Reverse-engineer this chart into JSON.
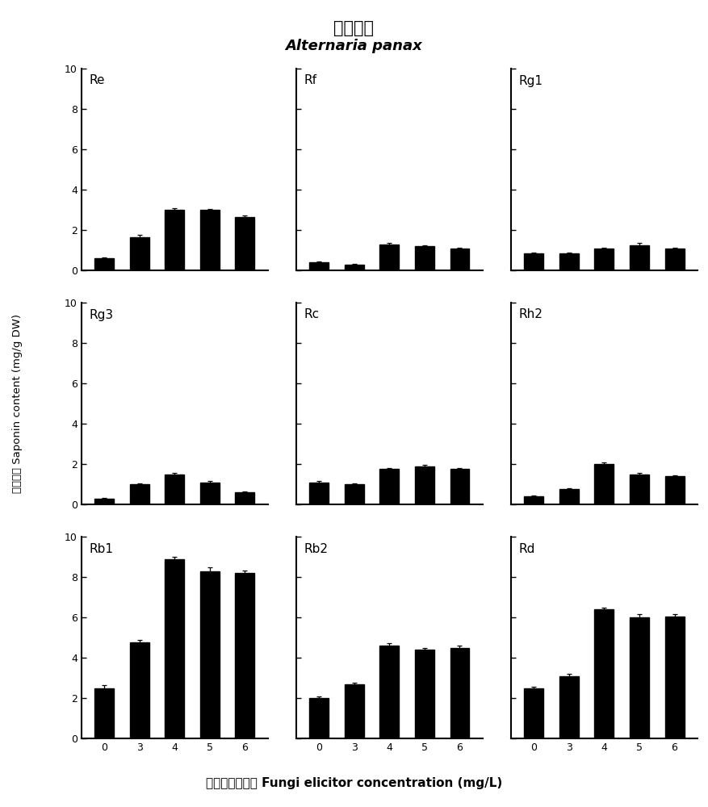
{
  "title_cn": "黑斑病菌",
  "title_latin": "Alternaria panax",
  "xlabel_cn": "真菌诱导子浓度",
  "xlabel_en": "Fungi elicitor concentration (mg/L)",
  "ylabel_cn": "皂苷含量",
  "ylabel_en": "Saponin content (mg/g DW)",
  "x_ticks": [
    0,
    3,
    4,
    5,
    6
  ],
  "subplots": [
    {
      "label": "Re",
      "values": [
        0.6,
        1.65,
        3.0,
        3.0,
        2.65
      ],
      "errors": [
        0.05,
        0.12,
        0.1,
        0.05,
        0.08
      ],
      "ylim": [
        0,
        10
      ]
    },
    {
      "label": "Rf",
      "values": [
        0.4,
        0.3,
        1.3,
        1.2,
        1.1
      ],
      "errors": [
        0.04,
        0.03,
        0.05,
        0.04,
        0.04
      ],
      "ylim": [
        0,
        10
      ]
    },
    {
      "label": "Rg1",
      "values": [
        0.85,
        0.85,
        1.1,
        1.25,
        1.1
      ],
      "errors": [
        0.04,
        0.04,
        0.04,
        0.1,
        0.04
      ],
      "ylim": [
        0,
        10
      ]
    },
    {
      "label": "Rg3",
      "values": [
        0.3,
        1.0,
        1.5,
        1.1,
        0.6
      ],
      "errors": [
        0.03,
        0.05,
        0.06,
        0.05,
        0.04
      ],
      "ylim": [
        0,
        10
      ]
    },
    {
      "label": "Rc",
      "values": [
        1.1,
        1.0,
        1.75,
        1.9,
        1.75
      ],
      "errors": [
        0.05,
        0.05,
        0.06,
        0.05,
        0.05
      ],
      "ylim": [
        0,
        10
      ]
    },
    {
      "label": "Rh2",
      "values": [
        0.4,
        0.75,
        2.0,
        1.5,
        1.4
      ],
      "errors": [
        0.03,
        0.04,
        0.07,
        0.05,
        0.05
      ],
      "ylim": [
        0,
        10
      ]
    },
    {
      "label": "Rb1",
      "values": [
        2.5,
        4.75,
        8.9,
        8.3,
        8.2
      ],
      "errors": [
        0.15,
        0.15,
        0.12,
        0.18,
        0.12
      ],
      "ylim": [
        0,
        10
      ]
    },
    {
      "label": "Rb2",
      "values": [
        2.0,
        2.7,
        4.6,
        4.4,
        4.5
      ],
      "errors": [
        0.08,
        0.08,
        0.12,
        0.1,
        0.1
      ],
      "ylim": [
        0,
        10
      ]
    },
    {
      "label": "Rd",
      "values": [
        2.5,
        3.1,
        6.4,
        6.0,
        6.05
      ],
      "errors": [
        0.08,
        0.1,
        0.1,
        0.15,
        0.1
      ],
      "ylim": [
        0,
        10
      ]
    }
  ],
  "bar_color": "#000000",
  "bar_width": 0.55,
  "figsize": [
    8.77,
    10.0
  ],
  "dpi": 100
}
